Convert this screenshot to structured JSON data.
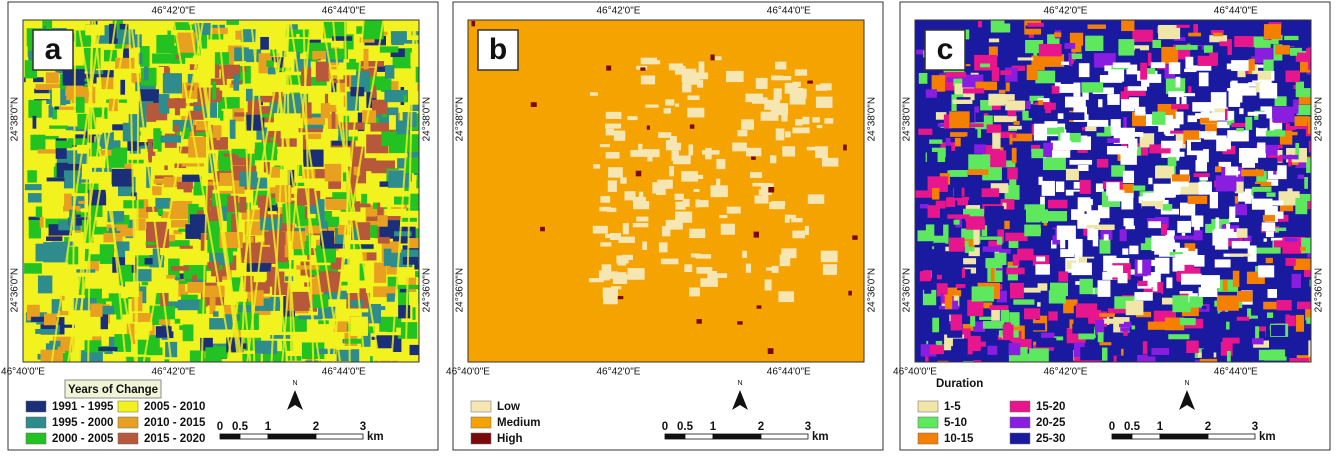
{
  "panels": [
    {
      "label": "a",
      "top_ticks": [
        "46°42'0\"E",
        "46°44'0\"E"
      ],
      "bottom_ticks": [
        "46°40'0\"E",
        "46°42'0\"E",
        "46°44'0\"E"
      ],
      "left_ticks": [
        "24°38'0\"N",
        "24°36'0\"N"
      ],
      "right_ticks": [
        "24°38'0\"N",
        "24°36'0\"N"
      ],
      "legend": {
        "title": "Years of Change",
        "items": [
          {
            "label": "1991 - 1995",
            "color": "#1a2f78"
          },
          {
            "label": "1995 - 2000",
            "color": "#2e8c8c"
          },
          {
            "label": "2000 - 2005",
            "color": "#22c222"
          },
          {
            "label": "2005 - 2010",
            "color": "#f2f21e"
          },
          {
            "label": "2010 - 2015",
            "color": "#e8a020"
          },
          {
            "label": "2015 - 2020",
            "color": "#b8583a"
          }
        ]
      },
      "scale": {
        "labels": [
          "0",
          "0.5",
          "1",
          "2",
          "3"
        ],
        "unit": "km"
      },
      "north": "N"
    },
    {
      "label": "b",
      "top_ticks": [
        "46°42'0\"E",
        "46°44'0\"E"
      ],
      "bottom_ticks": [
        "46°40'0\"E",
        "46°42'0\"E",
        "46°44'0\"E"
      ],
      "left_ticks": [
        "24°38'0\"N",
        "24°36'0\"N"
      ],
      "right_ticks": [
        "24°38'0\"N",
        "24°36'0\"N"
      ],
      "legend": {
        "items": [
          {
            "label": "Low",
            "color": "#f5e6b4"
          },
          {
            "label": "Medium",
            "color": "#f5a300"
          },
          {
            "label": "High",
            "color": "#7a0a0a"
          }
        ]
      },
      "scale": {
        "labels": [
          "0",
          "0.5",
          "1",
          "2",
          "3"
        ],
        "unit": "km"
      },
      "north": "N"
    },
    {
      "label": "c",
      "top_ticks": [
        "46°42'0\"E",
        "46°44'0\"E"
      ],
      "bottom_ticks": [
        "46°40'0\"E",
        "46°42'0\"E",
        "46°44'0\"E"
      ],
      "left_ticks": [
        "24°38'0\"N",
        "24°36'0\"N"
      ],
      "right_ticks": [
        "24°38'0\"N",
        "24°36'0\"N"
      ],
      "legend": {
        "title": "Duration",
        "items": [
          {
            "label": "1-5",
            "color": "#f0e6a8"
          },
          {
            "label": "5-10",
            "color": "#5ee85e"
          },
          {
            "label": "10-15",
            "color": "#f57f00"
          },
          {
            "label": "15-20",
            "color": "#e8168c"
          },
          {
            "label": "20-25",
            "color": "#8a1ee0"
          },
          {
            "label": "25-30",
            "color": "#1a1aa0"
          }
        ]
      },
      "scale": {
        "labels": [
          "0",
          "0.5",
          "1",
          "2",
          "3"
        ],
        "unit": "km"
      },
      "north": "N"
    }
  ]
}
